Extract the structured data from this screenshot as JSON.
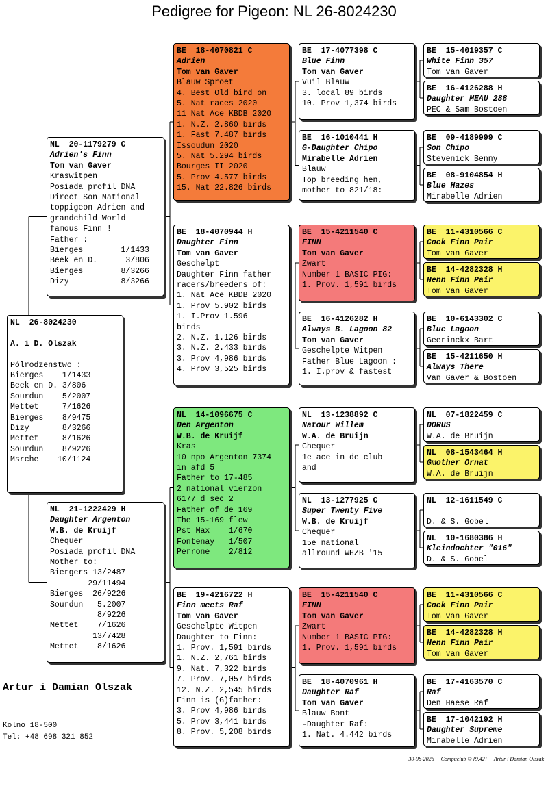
{
  "title": "Pedigree for Pigeon: NL  26-8024230",
  "cards": [
    {
      "ring": "NL  26-8024230",
      "breeder": "A. i D. Olszak",
      "notes": [
        "Pólrodzenstwo :",
        "Bierges    1/1433",
        "Beek en D. 3/806",
        "Sourdun    5/2007",
        "Mettet     7/1626",
        "Bierges    8/9475",
        "Dizy       8/3266",
        "Mettet     8/1626",
        "Sourdun    8/9226",
        "Msrche    10/1124"
      ]
    },
    {
      "ring": "NL  20-1179279 C",
      "name": "Adrien's Finn",
      "breeder": "Tom van Gaver",
      "notes": [
        "Kraswitpen",
        "Posiada profil DNA",
        "Direct Son National",
        "toppigeon Adrien and",
        "grandchild World",
        "famous Finn !",
        "Father :",
        "Bierges        1/1433",
        "Beek en D.      3/806",
        "Bierges        8/3266",
        "Dizy           8/3266"
      ]
    },
    {
      "ring": "NL  21-1222429 H",
      "name": "Daughter Argenton",
      "breeder": "W.B. de Kruijf",
      "notes": [
        "Chequer",
        "Posiada profil DNA",
        "Mother to:",
        "Biergers 13/2487",
        "        29/11494",
        "Bierges  26/9226",
        "Sourdun   5.2007",
        "          8/9226",
        "Mettet    7/1626",
        "         13/7428",
        "Mettet    8/1626"
      ]
    },
    {
      "ring": "BE  18-4070821 C",
      "name": "Adrien",
      "breeder": "Tom van Gaver",
      "color": "#f47b3a",
      "notes": [
        "Blauw Sproet",
        "4. Best Old bird on",
        "5. Nat races 2020",
        "11 Nat Ace KBDB 2020",
        "1. N.Z. 2.860 birds",
        "1. Fast 7.487 birds",
        "Issoudun 2020",
        "5. Nat 5.294 birds",
        "Bourges II 2020",
        "5. Prov 4.577 birds",
        "15. Nat 22.826 birds"
      ]
    },
    {
      "ring": "BE  18-4070944 H",
      "name": "Daughter Finn",
      "breeder": "Tom van Gaver",
      "notes": [
        "Geschelpt",
        "Daughter Finn father",
        "racers/breeders of:",
        "1. Nat Ace KBDB 2020",
        "1. Prov 5.902 birds",
        "1. I.Prov 1.596",
        "birds",
        "2. N.Z. 1.126 birds",
        "3. N.Z. 2.433 birds",
        "3. Prov 4,986 birds",
        "4. Prov 3,525 birds"
      ]
    },
    {
      "ring": "NL  14-1096675 C",
      "name": "Den Argenton",
      "breeder": "W.B. de Kruijf",
      "color": "#7ee87e",
      "notes": [
        "Kras",
        "10 npo Argenton 7374",
        "in afd 5",
        "Father to 17-485",
        "2 national vierzon",
        "6177 d sec 2",
        "Father of de 169",
        "The 15-169 flew",
        "Pst Max    1/670",
        "Fontenay   1/507",
        "Perrone    2/812"
      ]
    },
    {
      "ring": "BE  19-4216722 H",
      "name": "Finn meets Raf",
      "breeder": "Tom van Gaver",
      "notes": [
        "Geschelpte Witpen",
        "Daughter to Finn:",
        "1. Prov. 1,591 birds",
        "1. N.Z. 2,761 birds",
        "9. Nat. 7,322 birds",
        "7. Prov. 7,057 birds",
        "12. N.Z. 2,545 birds",
        "Finn is (G)father:",
        "3. Prov 4,986 birds",
        "5. Prov 3,441 birds",
        "8. Prov. 5,208 birds"
      ]
    },
    {
      "ring": "BE  17-4077398 C",
      "name": "Blue Finn",
      "breeder": "Tom van Gaver",
      "notes": [
        "Vuil Blauw",
        "3. local 89 birds",
        "10. Prov 1,374 birds"
      ]
    },
    {
      "ring": "BE  16-1010441 H",
      "name": "G-Daughter Chipo",
      "breeder": "Mirabelle Adrien",
      "notes": [
        "Blauw",
        "Top breeding hen,",
        "mother to 821/18:"
      ]
    },
    {
      "ring": "BE  15-4211540 C",
      "name": "FINN",
      "breeder": "Tom van Gaver",
      "color": "#f47a7a",
      "notes": [
        "Zwart",
        "Number 1 BASIC PIG:",
        "1. Prov. 1,591 birds"
      ]
    },
    {
      "ring": "BE  16-4126282 H",
      "name": "Always B. Lagoon 82",
      "breeder": "Tom van Gaver",
      "notes": [
        "Geschelpte Witpen",
        "Father Blue Lagoon :",
        "1. I.prov & fastest"
      ]
    },
    {
      "ring": "NL  13-1238892 C",
      "name": "Natour Willem",
      "breeder": "W.A. de Bruijn",
      "notes": [
        "Chequer",
        "1e ace in de club",
        "and"
      ]
    },
    {
      "ring": "NL  13-1277925 C",
      "name": "Super Twenty Five",
      "breeder": "W.B. de Kruijf",
      "notes": [
        "Chequer",
        "15e national",
        "allround WHZB '15"
      ]
    },
    {
      "ring": "BE  15-4211540 C",
      "name": "FINN",
      "breeder": "Tom van Gaver",
      "color": "#f47a7a",
      "notes": [
        "Zwart",
        "Number 1 BASIC PIG:",
        "1. Prov. 1,591 birds"
      ]
    },
    {
      "ring": "BE  18-4070961 H",
      "name": "Daughter Raf",
      "breeder": "Tom van Gaver",
      "notes": [
        "Blauw Bont",
        "-Daughter Raf:",
        "1. Nat. 4.442 birds"
      ]
    },
    {
      "ring": "BE  15-4019357 C",
      "name": "White Finn 357",
      "breeder": "Tom van Gaver"
    },
    {
      "ring": "BE  16-4126288 H",
      "name": "Daughter MEAU 288",
      "breeder": "PEC & Sam Bostoen"
    },
    {
      "ring": "BE  09-4189999 C",
      "name": "Son Chipo",
      "breeder": "Stevenick Benny"
    },
    {
      "ring": "BE  08-9104854 H",
      "name": "Blue Hazes",
      "breeder": "Mirabelle Adrien"
    },
    {
      "ring": "BE  11-4310566 C",
      "name": "Cock Finn Pair",
      "breeder": "Tom van Gaver",
      "color": "#fbf36a"
    },
    {
      "ring": "BE  14-4282328 H",
      "name": "Henn Finn Pair",
      "breeder": "Tom van Gaver",
      "color": "#fbf36a"
    },
    {
      "ring": "BE  10-6143302 C",
      "name": "Blue Lagoon",
      "breeder": "Geerinckx Bart"
    },
    {
      "ring": "BE  15-4211650 H",
      "name": "Always There",
      "breeder": "Van Gaver & Bostoen"
    },
    {
      "ring": "NL  07-1822459 C",
      "name": "DORUS",
      "breeder": "W.A. de Bruijn"
    },
    {
      "ring": "NL  08-1543464 H",
      "name": "Gmother Ornat",
      "breeder": "W.A. de Bruijn",
      "color": "#fbf36a"
    },
    {
      "ring": "NL  12-1611549 C",
      "breeder": "D. & S. Gobel"
    },
    {
      "ring": "NL  10-1680386 H",
      "name": "Kleindochter \"016\"",
      "breeder": "D. & S. Gobel"
    },
    {
      "ring": "BE  11-4310566 C",
      "name": "Cock Finn Pair",
      "breeder": "Tom van Gaver",
      "color": "#fbf36a"
    },
    {
      "ring": "BE  14-4282328 H",
      "name": "Henn Finn Pair",
      "breeder": "Tom van Gaver",
      "color": "#fbf36a"
    },
    {
      "ring": "BE  17-4163570 C",
      "name": "Raf",
      "breeder": "Den Haese Raf"
    },
    {
      "ring": "BE  17-1042192 H",
      "name": "Daughter Supreme",
      "breeder": "Mirabelle Adrien"
    }
  ],
  "footer": {
    "owner_name": "Artur i Damian Olszak",
    "address": "Kolno 18-500",
    "phone": "Tel: +48 698 321 852",
    "date": "30-08-2026",
    "software": "Compuclub © [9.42]",
    "owner": "Artur i Damian Olszak"
  }
}
